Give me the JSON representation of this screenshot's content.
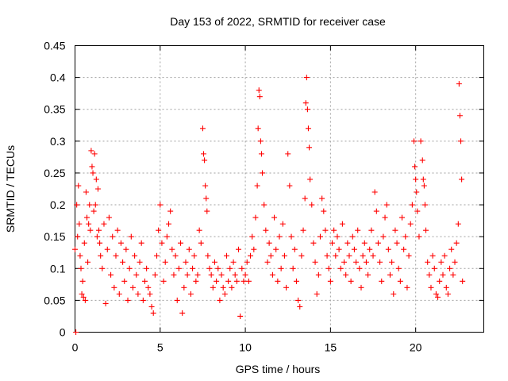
{
  "chart_data": {
    "type": "scatter",
    "title": "Day 153 of 2022, SRMTID for receiver case",
    "xlabel": "GPS time / hours",
    "ylabel": "SRMTID / TECUs",
    "xlim": [
      0,
      24
    ],
    "ylim": [
      0,
      0.45
    ],
    "x_ticks": [
      0,
      5,
      10,
      15,
      20
    ],
    "x_tick_labels": [
      "0",
      "5",
      "10",
      "15",
      "20"
    ],
    "y_ticks": [
      0,
      0.05,
      0.1,
      0.15,
      0.2,
      0.25,
      0.3,
      0.35,
      0.4,
      0.45
    ],
    "y_tick_labels": [
      "0",
      "0.05",
      "0.1",
      "0.15",
      "0.2",
      "0.25",
      "0.3",
      "0.35",
      "0.4",
      "0.45"
    ],
    "grid": true,
    "marker": "+",
    "series_color": "#ff0000",
    "series": [
      {
        "name": "SRMTID",
        "x": [
          0.0,
          0.05,
          0.1,
          0.15,
          0.2,
          0.25,
          0.3,
          0.35,
          0.4,
          0.45,
          0.5,
          0.55,
          0.6,
          0.65,
          0.7,
          0.75,
          0.8,
          0.85,
          0.9,
          0.95,
          1.0,
          1.05,
          1.1,
          1.15,
          1.2,
          1.25,
          1.3,
          1.35,
          1.4,
          1.45,
          1.5,
          1.6,
          1.7,
          1.8,
          1.9,
          2.0,
          2.1,
          2.2,
          2.3,
          2.4,
          2.5,
          2.6,
          2.7,
          2.8,
          2.9,
          3.0,
          3.1,
          3.2,
          3.3,
          3.4,
          3.5,
          3.6,
          3.7,
          3.8,
          3.9,
          4.0,
          4.1,
          4.2,
          4.3,
          4.4,
          4.5,
          4.6,
          4.7,
          4.8,
          4.9,
          5.0,
          5.1,
          5.2,
          5.3,
          5.4,
          5.5,
          5.6,
          5.7,
          5.8,
          5.9,
          6.0,
          6.1,
          6.2,
          6.3,
          6.4,
          6.5,
          6.6,
          6.7,
          6.8,
          6.9,
          7.0,
          7.1,
          7.2,
          7.3,
          7.4,
          7.5,
          7.55,
          7.6,
          7.65,
          7.7,
          7.75,
          7.8,
          7.9,
          8.0,
          8.1,
          8.2,
          8.3,
          8.4,
          8.5,
          8.6,
          8.7,
          8.8,
          8.9,
          9.0,
          9.1,
          9.2,
          9.3,
          9.4,
          9.5,
          9.6,
          9.7,
          9.8,
          9.9,
          10.0,
          10.1,
          10.2,
          10.3,
          10.4,
          10.5,
          10.6,
          10.7,
          10.75,
          10.8,
          10.85,
          10.9,
          10.95,
          11.0,
          11.1,
          11.2,
          11.3,
          11.4,
          11.5,
          11.6,
          11.7,
          11.8,
          11.9,
          12.0,
          12.1,
          12.2,
          12.3,
          12.4,
          12.5,
          12.6,
          12.7,
          12.8,
          12.9,
          13.0,
          13.1,
          13.2,
          13.3,
          13.4,
          13.5,
          13.55,
          13.6,
          13.65,
          13.7,
          13.75,
          13.8,
          13.9,
          14.0,
          14.1,
          14.2,
          14.3,
          14.4,
          14.5,
          14.6,
          14.7,
          14.8,
          14.9,
          15.0,
          15.1,
          15.2,
          15.3,
          15.4,
          15.5,
          15.6,
          15.7,
          15.8,
          15.9,
          16.0,
          16.1,
          16.2,
          16.3,
          16.4,
          16.5,
          16.6,
          16.7,
          16.8,
          16.9,
          17.0,
          17.1,
          17.2,
          17.3,
          17.4,
          17.5,
          17.6,
          17.7,
          17.8,
          17.9,
          18.0,
          18.1,
          18.2,
          18.3,
          18.4,
          18.5,
          18.6,
          18.7,
          18.8,
          18.9,
          19.0,
          19.1,
          19.2,
          19.3,
          19.4,
          19.5,
          19.6,
          19.7,
          19.8,
          19.9,
          19.95,
          20.0,
          20.05,
          20.1,
          20.2,
          20.3,
          20.4,
          20.45,
          20.5,
          20.55,
          20.6,
          20.7,
          20.8,
          20.9,
          21.0,
          21.1,
          21.2,
          21.3,
          21.4,
          21.5,
          21.6,
          21.7,
          21.8,
          21.9,
          22.0,
          22.1,
          22.2,
          22.3,
          22.4,
          22.5,
          22.55,
          22.6,
          22.65,
          22.7,
          22.75
        ],
        "y": [
          0.13,
          0.0,
          0.2,
          0.15,
          0.23,
          0.17,
          0.12,
          0.1,
          0.06,
          0.08,
          0.055,
          0.14,
          0.05,
          0.22,
          0.18,
          0.11,
          0.17,
          0.2,
          0.16,
          0.285,
          0.26,
          0.25,
          0.19,
          0.28,
          0.2,
          0.24,
          0.15,
          0.225,
          0.16,
          0.14,
          0.12,
          0.1,
          0.17,
          0.045,
          0.13,
          0.18,
          0.09,
          0.15,
          0.07,
          0.12,
          0.16,
          0.06,
          0.14,
          0.11,
          0.08,
          0.13,
          0.05,
          0.1,
          0.15,
          0.07,
          0.12,
          0.09,
          0.06,
          0.11,
          0.14,
          0.05,
          0.08,
          0.1,
          0.07,
          0.06,
          0.04,
          0.03,
          0.09,
          0.12,
          0.16,
          0.2,
          0.14,
          0.08,
          0.11,
          0.15,
          0.17,
          0.19,
          0.13,
          0.09,
          0.12,
          0.05,
          0.1,
          0.14,
          0.03,
          0.07,
          0.11,
          0.09,
          0.13,
          0.06,
          0.1,
          0.12,
          0.08,
          0.09,
          0.16,
          0.14,
          0.32,
          0.28,
          0.27,
          0.23,
          0.21,
          0.19,
          0.12,
          0.1,
          0.09,
          0.07,
          0.11,
          0.08,
          0.1,
          0.05,
          0.09,
          0.07,
          0.06,
          0.12,
          0.08,
          0.1,
          0.07,
          0.11,
          0.09,
          0.08,
          0.13,
          0.025,
          0.1,
          0.08,
          0.09,
          0.11,
          0.08,
          0.12,
          0.15,
          0.13,
          0.18,
          0.23,
          0.32,
          0.38,
          0.37,
          0.3,
          0.28,
          0.25,
          0.2,
          0.16,
          0.11,
          0.14,
          0.12,
          0.09,
          0.18,
          0.13,
          0.08,
          0.15,
          0.1,
          0.17,
          0.12,
          0.07,
          0.28,
          0.23,
          0.15,
          0.1,
          0.13,
          0.08,
          0.05,
          0.04,
          0.12,
          0.16,
          0.21,
          0.36,
          0.4,
          0.35,
          0.32,
          0.29,
          0.24,
          0.2,
          0.14,
          0.11,
          0.06,
          0.09,
          0.15,
          0.21,
          0.19,
          0.16,
          0.12,
          0.1,
          0.08,
          0.14,
          0.16,
          0.12,
          0.15,
          0.13,
          0.1,
          0.17,
          0.11,
          0.09,
          0.14,
          0.12,
          0.08,
          0.15,
          0.13,
          0.11,
          0.16,
          0.1,
          0.07,
          0.12,
          0.14,
          0.11,
          0.09,
          0.13,
          0.16,
          0.12,
          0.22,
          0.19,
          0.14,
          0.11,
          0.08,
          0.15,
          0.18,
          0.2,
          0.13,
          0.09,
          0.11,
          0.06,
          0.16,
          0.14,
          0.1,
          0.08,
          0.18,
          0.13,
          0.15,
          0.07,
          0.12,
          0.17,
          0.2,
          0.3,
          0.26,
          0.24,
          0.22,
          0.19,
          0.15,
          0.3,
          0.27,
          0.24,
          0.23,
          0.2,
          0.16,
          0.11,
          0.09,
          0.07,
          0.12,
          0.1,
          0.06,
          0.055,
          0.08,
          0.11,
          0.09,
          0.12,
          0.07,
          0.06,
          0.1,
          0.13,
          0.09,
          0.11,
          0.14,
          0.17,
          0.39,
          0.34,
          0.3,
          0.24,
          0.08
        ]
      }
    ]
  }
}
